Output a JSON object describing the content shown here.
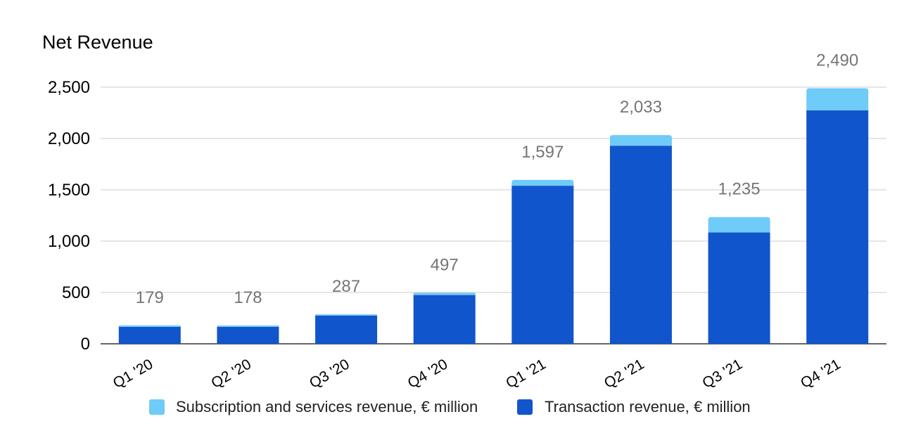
{
  "chart_data": {
    "type": "bar",
    "stacked": true,
    "title": "Net Revenue",
    "categories": [
      "Q1 '20",
      "Q2 '20",
      "Q3 '20",
      "Q4 '20",
      "Q1 '21",
      "Q2 '21",
      "Q3 '21",
      "Q4 '21"
    ],
    "series": [
      {
        "name": "Transaction revenue, € million",
        "color": "#1155cc",
        "values": [
          165,
          165,
          275,
          475,
          1540,
          1930,
          1085,
          2275
        ]
      },
      {
        "name": "Subscription and services revenue, € million",
        "color": "#6fcbf7",
        "values": [
          14,
          13,
          12,
          22,
          57,
          103,
          150,
          215
        ]
      }
    ],
    "totals": [
      179,
      178,
      287,
      497,
      1597,
      2033,
      1235,
      2490
    ],
    "total_labels": [
      "179",
      "178",
      "287",
      "497",
      "1,597",
      "2,033",
      "1,235",
      "2,490"
    ],
    "yticks": [
      0,
      500,
      1000,
      1500,
      2000,
      2500
    ],
    "ytick_labels": [
      "0",
      "500",
      "1,000",
      "1,500",
      "2,000",
      "2,500"
    ],
    "ylim": [
      0,
      2500
    ],
    "xlabel": "",
    "ylabel": "",
    "grid": true,
    "legend_position": "bottom",
    "legend": [
      {
        "label": "Subscription and services revenue, € million",
        "color": "#6fcbf7"
      },
      {
        "label": "Transaction revenue, € million",
        "color": "#1155cc"
      }
    ]
  }
}
